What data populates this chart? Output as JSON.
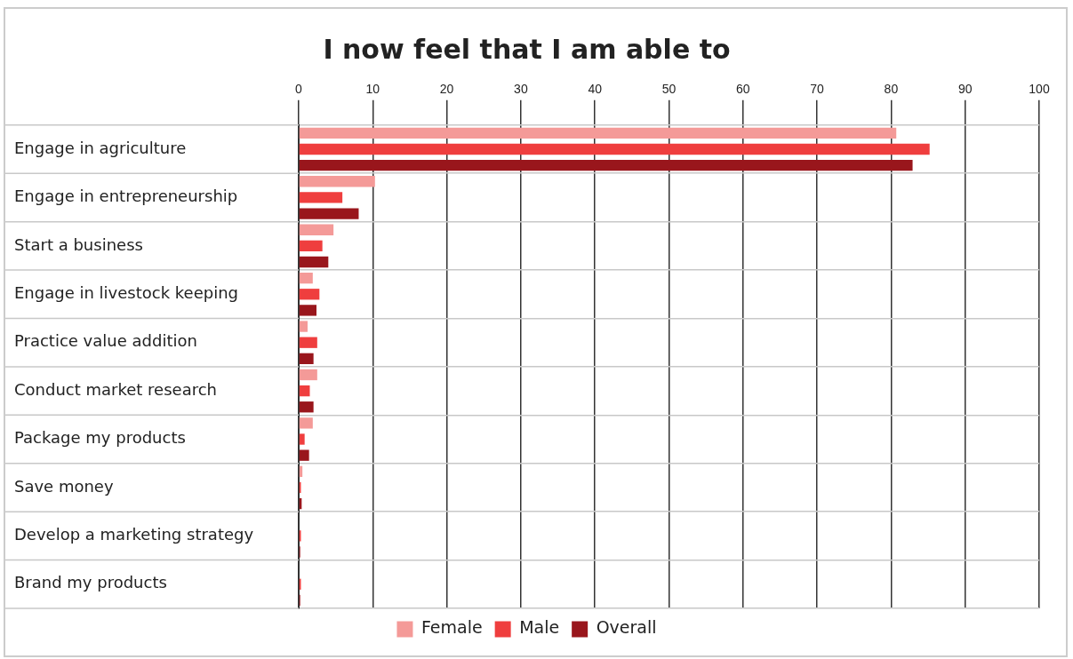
{
  "chart_data": {
    "type": "bar",
    "orientation": "horizontal",
    "title": "I now feel that I am able to",
    "categories": [
      "Engage in agriculture",
      "Engage in entrepreneurship",
      "Start a business",
      "Engage in livestock keeping",
      "Practice value addition",
      "Conduct market research",
      "Package my products",
      "Save money",
      "Develop a marketing strategy",
      "Brand my products"
    ],
    "series": [
      {
        "name": "Female",
        "color": "#f49a98",
        "values": [
          80.7,
          10.3,
          4.7,
          1.9,
          1.2,
          2.5,
          1.9,
          0.5,
          0,
          0
        ]
      },
      {
        "name": "Male",
        "color": "#ef3e3e",
        "values": [
          85.2,
          5.9,
          3.2,
          2.8,
          2.5,
          1.5,
          0.8,
          0.3,
          0.3,
          0.3
        ]
      },
      {
        "name": "Overall",
        "color": "#99161c",
        "values": [
          82.9,
          8.1,
          4.0,
          2.4,
          2.0,
          2.0,
          1.4,
          0.4,
          0.2,
          0.2
        ]
      }
    ],
    "xlim": [
      0,
      100
    ],
    "xticks": [
      0,
      10,
      20,
      30,
      40,
      50,
      60,
      70,
      80,
      90,
      100
    ],
    "grid": true,
    "legend": "bottom"
  }
}
